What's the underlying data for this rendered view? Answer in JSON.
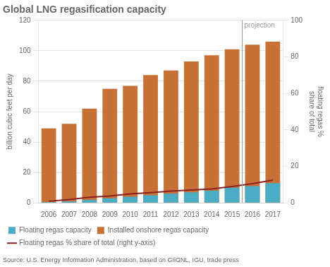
{
  "chart_data": {
    "type": "bar",
    "title": "Global LNG regasification capacity",
    "ylabel": "billion cubic feet per day",
    "y2label": "floating regas %\nshare of total",
    "source": "Source: U.S. Energy Information Administration, based on GIlGNL, IGU, trade press",
    "categories": [
      "2006",
      "2007",
      "2008",
      "2009",
      "2010",
      "2011",
      "2012",
      "2013",
      "2014",
      "2015",
      "2016",
      "2017"
    ],
    "series": [
      {
        "name": "Floating regas capacity",
        "type": "bar",
        "color": "#4bacc6",
        "values": [
          0.5,
          1,
          2,
          3,
          4,
          5,
          6,
          7,
          8,
          10,
          11,
          13
        ]
      },
      {
        "name": "Installed onshore regas capacity",
        "type": "bar",
        "color": "#c87137",
        "values": [
          49,
          52,
          62,
          75,
          77,
          84,
          87,
          93,
          97,
          101,
          104,
          106
        ]
      },
      {
        "name": "Floating regas % share of total (right y-axis)",
        "type": "line",
        "axis": "y2",
        "color": "#8b2020",
        "values": [
          0.9,
          1.8,
          3.1,
          3.8,
          4.9,
          5.6,
          6.5,
          7.0,
          7.6,
          9.0,
          10.5,
          12.5
        ]
      }
    ],
    "annotations": [
      {
        "text": "projection",
        "x_between": [
          "2015",
          "2016"
        ],
        "color": "#999999"
      }
    ],
    "ylim": [
      0,
      120
    ],
    "yticks": [
      0,
      20,
      40,
      60,
      80,
      100,
      120
    ],
    "y2lim": [
      0,
      100
    ],
    "y2ticks": [
      0,
      20,
      40,
      60,
      80,
      100
    ],
    "grid": true,
    "legend": "bottom"
  }
}
